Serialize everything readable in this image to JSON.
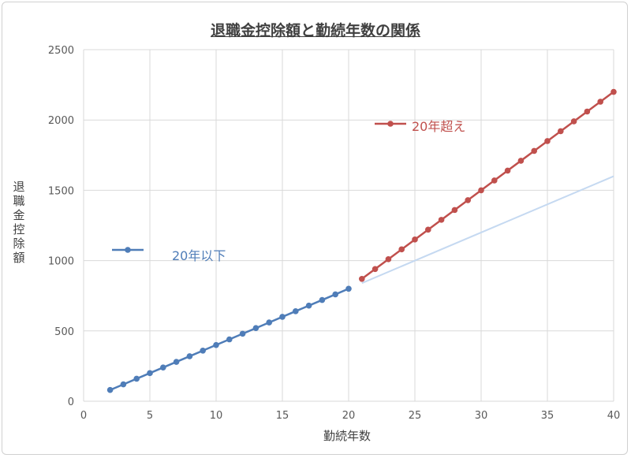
{
  "chart_data": {
    "type": "line",
    "title": "退職金控除額と勤続年数の関係",
    "xlabel": "勤続年数",
    "ylabel": "退職金控除額",
    "xlim": [
      0,
      40
    ],
    "ylim": [
      0,
      2500
    ],
    "x_ticks": [
      0,
      5,
      10,
      15,
      20,
      25,
      30,
      35,
      40
    ],
    "y_ticks": [
      0,
      500,
      1000,
      1500,
      2000,
      2500
    ],
    "grid": true,
    "series": [
      {
        "name": "20年以下",
        "color": "#4f7db8",
        "marker": true,
        "x": [
          2,
          3,
          4,
          5,
          6,
          7,
          8,
          9,
          10,
          11,
          12,
          13,
          14,
          15,
          16,
          17,
          18,
          19,
          20
        ],
        "values": [
          80,
          120,
          160,
          200,
          240,
          280,
          320,
          360,
          400,
          440,
          480,
          520,
          560,
          600,
          640,
          680,
          720,
          760,
          800
        ]
      },
      {
        "name": "20年超え",
        "color": "#c0504d",
        "marker": true,
        "x": [
          21,
          22,
          23,
          24,
          25,
          26,
          27,
          28,
          29,
          30,
          31,
          32,
          33,
          34,
          35,
          36,
          37,
          38,
          39,
          40
        ],
        "values": [
          870,
          940,
          1010,
          1080,
          1150,
          1220,
          1290,
          1360,
          1430,
          1500,
          1570,
          1640,
          1710,
          1780,
          1850,
          1920,
          1990,
          2060,
          2130,
          2200
        ]
      },
      {
        "color": "#c5d9f1",
        "marker": false,
        "x": [
          21,
          40
        ],
        "values": [
          840,
          1600
        ]
      }
    ]
  }
}
